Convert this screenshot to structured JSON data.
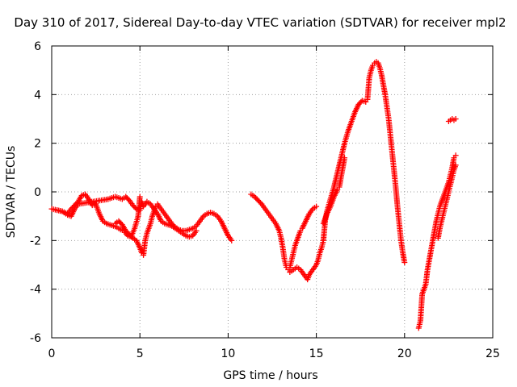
{
  "chart_data": {
    "type": "scatter",
    "title": "Day 310 of 2017, Sidereal Day-to-day VTEC variation (SDTVAR) for receiver mpl2",
    "xlabel": "GPS time / hours",
    "ylabel": "SDTVAR / TECUs",
    "xlim": [
      0,
      25
    ],
    "ylim": [
      -6,
      6
    ],
    "xticks": [
      0,
      5,
      10,
      15,
      20,
      25
    ],
    "yticks": [
      -6,
      -4,
      -2,
      0,
      2,
      4,
      6
    ],
    "grid": true,
    "marker": "+",
    "marker_color": "#ff0000",
    "series": [
      {
        "values": [
          [
            0.0,
            -0.7
          ],
          [
            0.3,
            -0.75
          ],
          [
            0.6,
            -0.8
          ],
          [
            0.9,
            -0.9
          ],
          [
            1.1,
            -0.7
          ],
          [
            1.3,
            -0.55
          ],
          [
            1.5,
            -0.4
          ],
          [
            1.7,
            -0.15
          ],
          [
            1.9,
            -0.1
          ],
          [
            2.1,
            -0.3
          ],
          [
            2.3,
            -0.55
          ],
          [
            2.5,
            -0.5
          ],
          [
            2.7,
            -0.9
          ],
          [
            2.9,
            -1.2
          ],
          [
            3.1,
            -1.3
          ],
          [
            3.3,
            -1.35
          ],
          [
            3.5,
            -1.4
          ],
          [
            3.7,
            -1.45
          ],
          [
            3.9,
            -1.55
          ],
          [
            4.1,
            -1.6
          ],
          [
            4.3,
            -1.8
          ],
          [
            4.5,
            -1.85
          ],
          [
            4.7,
            -1.5
          ],
          [
            4.9,
            -1.0
          ],
          [
            5.0,
            -0.2
          ]
        ]
      },
      {
        "values": [
          [
            0.3,
            -0.75
          ],
          [
            0.6,
            -0.8
          ],
          [
            0.9,
            -0.95
          ],
          [
            1.1,
            -1.0
          ],
          [
            1.3,
            -0.7
          ],
          [
            1.5,
            -0.5
          ],
          [
            3.2,
            -0.3
          ],
          [
            3.4,
            -0.25
          ],
          [
            3.6,
            -0.2
          ],
          [
            3.8,
            -0.25
          ],
          [
            4.0,
            -0.3
          ],
          [
            4.2,
            -0.2
          ],
          [
            4.4,
            -0.35
          ],
          [
            4.6,
            -0.55
          ],
          [
            4.8,
            -0.7
          ],
          [
            5.0,
            -0.75
          ],
          [
            5.1,
            -0.4
          ],
          [
            5.2,
            -0.6
          ],
          [
            5.4,
            -0.4
          ],
          [
            5.6,
            -0.5
          ],
          [
            5.8,
            -0.7
          ],
          [
            6.0,
            -0.9
          ],
          [
            6.2,
            -1.2
          ],
          [
            6.4,
            -1.3
          ],
          [
            6.6,
            -1.35
          ],
          [
            6.8,
            -1.4
          ],
          [
            7.0,
            -1.5
          ],
          [
            7.2,
            -1.6
          ],
          [
            7.4,
            -1.7
          ],
          [
            7.6,
            -1.8
          ],
          [
            7.8,
            -1.85
          ],
          [
            8.0,
            -1.8
          ],
          [
            8.2,
            -1.6
          ]
        ]
      },
      {
        "values": [
          [
            3.6,
            -1.3
          ],
          [
            3.8,
            -1.2
          ],
          [
            4.0,
            -1.35
          ],
          [
            4.2,
            -1.6
          ],
          [
            4.4,
            -1.75
          ],
          [
            4.6,
            -1.9
          ],
          [
            4.8,
            -2.0
          ],
          [
            5.0,
            -2.3
          ],
          [
            5.1,
            -2.5
          ],
          [
            5.2,
            -2.6
          ],
          [
            5.3,
            -2.0
          ],
          [
            5.4,
            -1.7
          ],
          [
            5.5,
            -1.5
          ],
          [
            5.6,
            -1.3
          ],
          [
            5.7,
            -1.0
          ],
          [
            5.8,
            -0.8
          ],
          [
            5.9,
            -0.6
          ],
          [
            6.0,
            -0.5
          ],
          [
            6.2,
            -0.7
          ],
          [
            6.4,
            -0.9
          ],
          [
            6.6,
            -1.1
          ],
          [
            6.8,
            -1.3
          ],
          [
            7.0,
            -1.45
          ],
          [
            7.2,
            -1.55
          ],
          [
            7.4,
            -1.6
          ],
          [
            7.6,
            -1.6
          ],
          [
            7.8,
            -1.55
          ],
          [
            8.0,
            -1.5
          ],
          [
            8.2,
            -1.4
          ],
          [
            8.4,
            -1.2
          ],
          [
            8.6,
            -1.0
          ],
          [
            8.8,
            -0.9
          ],
          [
            9.0,
            -0.85
          ],
          [
            9.2,
            -0.9
          ],
          [
            9.4,
            -1.0
          ],
          [
            9.6,
            -1.2
          ],
          [
            9.8,
            -1.5
          ],
          [
            10.0,
            -1.8
          ],
          [
            10.2,
            -2.0
          ]
        ]
      },
      {
        "values": [
          [
            11.3,
            -0.1
          ],
          [
            11.5,
            -0.2
          ],
          [
            11.7,
            -0.35
          ],
          [
            11.9,
            -0.5
          ],
          [
            12.1,
            -0.7
          ],
          [
            12.3,
            -0.9
          ],
          [
            12.5,
            -1.1
          ],
          [
            12.7,
            -1.3
          ],
          [
            12.9,
            -1.6
          ],
          [
            13.0,
            -1.9
          ],
          [
            13.1,
            -2.3
          ],
          [
            13.2,
            -2.8
          ],
          [
            13.3,
            -3.1
          ],
          [
            13.4,
            -3.2
          ],
          [
            13.5,
            -3.1
          ],
          [
            13.6,
            -2.8
          ],
          [
            13.7,
            -2.5
          ],
          [
            13.8,
            -2.2
          ],
          [
            13.9,
            -2.0
          ],
          [
            14.0,
            -1.8
          ],
          [
            14.1,
            -1.6
          ],
          [
            14.2,
            -1.5
          ],
          [
            14.4,
            -1.2
          ],
          [
            14.6,
            -0.9
          ],
          [
            14.8,
            -0.7
          ],
          [
            15.0,
            -0.6
          ]
        ]
      },
      {
        "values": [
          [
            13.5,
            -3.3
          ],
          [
            13.7,
            -3.2
          ],
          [
            13.9,
            -3.1
          ],
          [
            14.1,
            -3.2
          ],
          [
            14.3,
            -3.4
          ],
          [
            14.5,
            -3.6
          ],
          [
            14.6,
            -3.4
          ],
          [
            14.8,
            -3.2
          ],
          [
            15.0,
            -3.0
          ],
          [
            15.1,
            -2.8
          ],
          [
            15.2,
            -2.5
          ],
          [
            15.3,
            -2.3
          ],
          [
            15.4,
            -2.0
          ],
          [
            15.5,
            -1.2
          ],
          [
            15.6,
            -0.8
          ],
          [
            15.8,
            -0.3
          ],
          [
            16.0,
            0.2
          ],
          [
            16.2,
            0.8
          ],
          [
            16.4,
            1.4
          ],
          [
            16.6,
            2.0
          ],
          [
            16.8,
            2.5
          ],
          [
            17.0,
            2.9
          ],
          [
            17.2,
            3.3
          ],
          [
            17.4,
            3.6
          ],
          [
            17.6,
            3.75
          ],
          [
            17.8,
            3.7
          ],
          [
            17.9,
            3.8
          ],
          [
            18.0,
            4.7
          ],
          [
            18.1,
            5.0
          ],
          [
            18.2,
            5.2
          ],
          [
            18.3,
            5.3
          ],
          [
            18.4,
            5.35
          ],
          [
            18.5,
            5.3
          ],
          [
            18.6,
            5.1
          ],
          [
            18.7,
            4.8
          ],
          [
            18.8,
            4.4
          ],
          [
            18.9,
            4.0
          ],
          [
            19.0,
            3.5
          ],
          [
            19.1,
            3.0
          ],
          [
            19.2,
            2.3
          ],
          [
            19.3,
            1.6
          ],
          [
            19.4,
            0.9
          ],
          [
            19.5,
            0.2
          ],
          [
            19.6,
            -0.6
          ],
          [
            19.7,
            -1.3
          ],
          [
            19.8,
            -2.0
          ],
          [
            19.9,
            -2.5
          ],
          [
            20.0,
            -2.9
          ]
        ]
      },
      {
        "values": [
          [
            15.4,
            -1.3
          ],
          [
            15.6,
            -0.9
          ],
          [
            15.8,
            -0.6
          ],
          [
            16.0,
            -0.2
          ],
          [
            16.2,
            0.1
          ],
          [
            16.3,
            0.2
          ],
          [
            16.4,
            0.6
          ],
          [
            16.5,
            1.0
          ],
          [
            16.6,
            1.4
          ]
        ]
      },
      {
        "values": [
          [
            20.8,
            -5.6
          ],
          [
            20.9,
            -5.3
          ],
          [
            21.0,
            -4.2
          ],
          [
            21.2,
            -3.8
          ],
          [
            21.3,
            -3.2
          ],
          [
            21.4,
            -2.8
          ],
          [
            21.5,
            -2.4
          ],
          [
            21.6,
            -2.0
          ],
          [
            21.7,
            -1.6
          ],
          [
            21.8,
            -1.2
          ],
          [
            21.9,
            -0.9
          ],
          [
            22.0,
            -0.6
          ],
          [
            22.1,
            -0.4
          ],
          [
            22.2,
            -0.2
          ],
          [
            22.3,
            0.0
          ],
          [
            22.4,
            0.2
          ],
          [
            22.5,
            0.4
          ],
          [
            22.6,
            0.7
          ],
          [
            22.7,
            1.0
          ],
          [
            22.8,
            1.4
          ],
          [
            22.9,
            1.5
          ]
        ]
      },
      {
        "values": [
          [
            21.9,
            -1.9
          ],
          [
            22.0,
            -1.5
          ],
          [
            22.1,
            -1.2
          ],
          [
            22.2,
            -0.9
          ],
          [
            22.3,
            -0.6
          ],
          [
            22.4,
            -0.3
          ],
          [
            22.5,
            0.0
          ],
          [
            22.6,
            0.3
          ],
          [
            22.7,
            0.6
          ],
          [
            22.8,
            0.9
          ],
          [
            22.9,
            1.1
          ]
        ]
      },
      {
        "values": [
          [
            22.5,
            2.9
          ],
          [
            22.6,
            2.95
          ],
          [
            22.7,
            3.0
          ],
          [
            22.8,
            2.95
          ],
          [
            22.9,
            3.0
          ]
        ]
      }
    ]
  }
}
